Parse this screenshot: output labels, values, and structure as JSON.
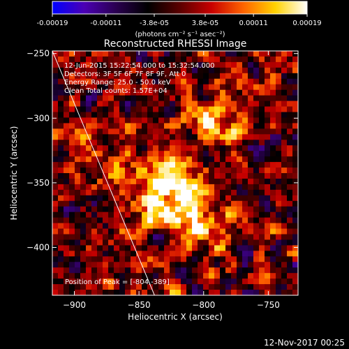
{
  "chart_data": {
    "type": "heatmap",
    "title": "Reconstructed RHESSI Image",
    "colorbar": {
      "ticks": [
        "-0.00019",
        "-0.00011",
        "-3.8e-05",
        "3.8e-05",
        "0.00011",
        "0.00019"
      ],
      "range": [
        -0.00019,
        0.00019
      ],
      "unit_label": "(photons cm⁻² s⁻¹ asec⁻²)",
      "colormap": [
        "#0000ff",
        "#4b00b4",
        "#2a0050",
        "#000000",
        "#5a0000",
        "#c80000",
        "#ff6400",
        "#ffd200",
        "#ffffff"
      ]
    },
    "xlabel": "Heliocentric X (arcsec)",
    "ylabel": "Heliocentric Y (arcsec)",
    "xlim": [
      -917,
      -727
    ],
    "ylim": [
      -437,
      -248
    ],
    "xticks": [
      -900,
      -850,
      -800,
      -750
    ],
    "yticks": [
      -250,
      -300,
      -350,
      -400
    ],
    "annotations": [
      "12-Jun-2015 15:22:54.000 to 15:32:54.000",
      "Detectors: 3F 5F 6F 7F 8F 9F, Att 0",
      "Energy Range: 25.0 - 50.0 keV",
      "Clean    Total counts: 1.57E+04"
    ],
    "peak_label": "Position of Peak = [-804,-389]",
    "peak_position": [
      -804,
      -389
    ],
    "limb_line": {
      "x": [
        -917,
        -838
      ],
      "y": [
        -248,
        -437
      ]
    },
    "grid": false
  },
  "footer": {
    "timestamp": "12-Nov-2017 00:25"
  }
}
